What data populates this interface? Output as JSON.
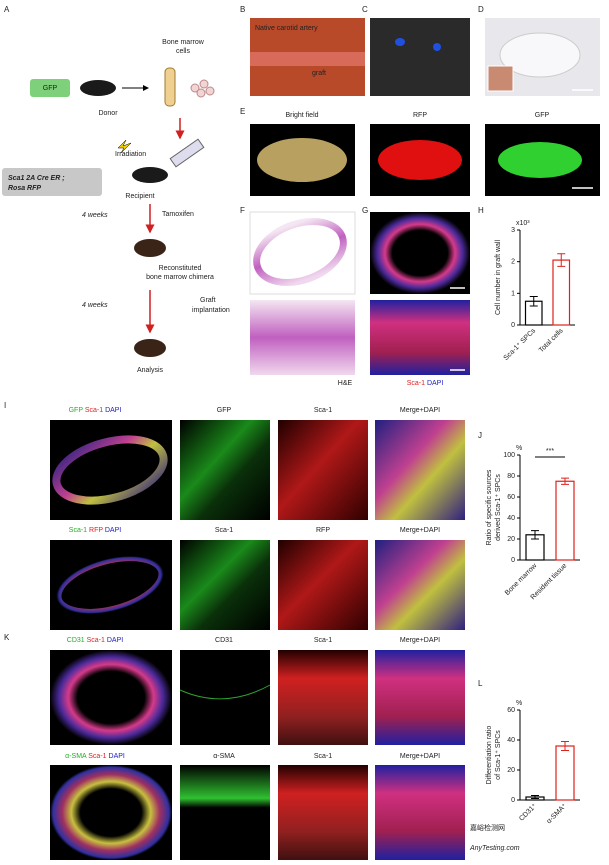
{
  "panel_labels": [
    "A",
    "B",
    "C",
    "D",
    "E",
    "F",
    "G",
    "H",
    "I",
    "J",
    "K",
    "L"
  ],
  "scheme": {
    "donor_box": "GFP",
    "donor": "Donor",
    "bone_marrow_cells": [
      "Bone marrow",
      "cells"
    ],
    "irradiation": "Irradiation",
    "recipient_box": [
      "Sca1 2A Cre ER ;",
      "Rosa RFP"
    ],
    "recipient": "Recipient",
    "weeks_1": "4 weeks",
    "tamoxifen": "Tamoxifen",
    "chimera": [
      "Reconstituted",
      "bone marrow chimera"
    ],
    "weeks_2": "4 weeks",
    "graft_implantation": [
      "Graft",
      "implantation"
    ],
    "analysis": "Analysis"
  },
  "panel_b": {
    "native": "Native carotid artery",
    "graft": "graft"
  },
  "panel_e": [
    "Bright field",
    "RFP",
    "GFP"
  ],
  "panel_f": "H&E",
  "panel_g": [
    "Sca-1",
    "DAPI"
  ],
  "panel_i": {
    "row1": {
      "merged": [
        "GFP",
        "Sca-1",
        "DAPI"
      ],
      "columns": [
        "GFP",
        "Sca-1",
        "Merge+DAPI"
      ]
    },
    "row2": {
      "merged": [
        "Sca-1",
        "RFP",
        "DAPI"
      ],
      "columns": [
        "Sca-1",
        "RFP",
        "Merge+DAPI"
      ]
    }
  },
  "panel_k": {
    "row1": {
      "merged": [
        "CD31",
        "Sca-1",
        "DAPI"
      ],
      "columns": [
        "CD31",
        "Sca-1",
        "Merge+DAPI"
      ]
    },
    "row2": {
      "merged": [
        "α-SMA",
        "Sca-1",
        "DAPI"
      ],
      "columns": [
        "α-SMA",
        "Sca-1",
        "Merge+DAPI"
      ]
    }
  },
  "charts": [
    {
      "type": "bar",
      "ylabel": [
        "Cell number in graft wall"
      ],
      "unit": "x10³",
      "categories": [
        "Sca-1⁺ SPCs",
        "Total cells"
      ],
      "values": [
        0.75,
        2.05
      ],
      "errors": [
        0.15,
        0.2
      ],
      "colors": [
        "#000000",
        "#e0201b"
      ],
      "ylim": [
        0,
        3
      ],
      "yticks": [
        0,
        1,
        2,
        3
      ]
    },
    {
      "type": "bar",
      "ylabel": [
        "Ratio of specific sources",
        "derived Sca-1⁺ SPCs"
      ],
      "unit": "%",
      "categories": [
        "Bone marrow",
        "Resident tissue"
      ],
      "values": [
        24,
        75
      ],
      "errors": [
        4,
        3
      ],
      "colors": [
        "#000000",
        "#e0201b"
      ],
      "ylim": [
        0,
        100
      ],
      "yticks": [
        0,
        20,
        40,
        60,
        80,
        100
      ],
      "annotation": "***"
    },
    {
      "type": "bar",
      "ylabel": [
        "Differentiation ratio",
        "of Sca-1⁺ SPCs"
      ],
      "unit": "%",
      "categories": [
        "CD31⁺",
        "α-SMA⁺"
      ],
      "values": [
        2,
        36
      ],
      "errors": [
        1,
        3
      ],
      "colors": [
        "#000000",
        "#e0201b"
      ],
      "ylim": [
        0,
        60
      ],
      "yticks": [
        0,
        20,
        40,
        60
      ]
    }
  ],
  "watermark": [
    "嘉峪检测网",
    "AnyTesting.com"
  ]
}
